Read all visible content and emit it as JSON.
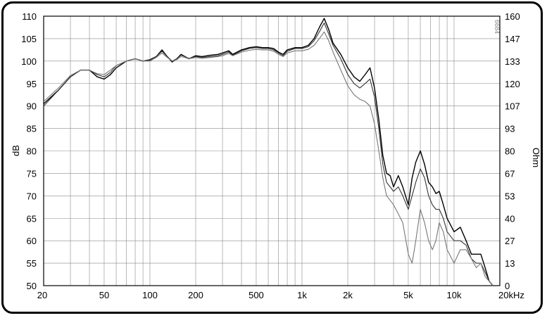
{
  "chart_data": {
    "type": "line",
    "title": "",
    "xlabel": "",
    "x_unit": "kHz",
    "ylabel": "dB",
    "y2label": "Ohm",
    "watermark": "6684",
    "x_scale": "log",
    "xlim": [
      20,
      20000
    ],
    "ylim": [
      50,
      110
    ],
    "y2lim": [
      0,
      160
    ],
    "grid": true,
    "x_tick_labels": [
      "20",
      "50",
      "100",
      "200",
      "500",
      "1k",
      "2k",
      "5k",
      "10k",
      "20kHz"
    ],
    "x_tick_values": [
      20,
      50,
      100,
      200,
      500,
      1000,
      2000,
      5000,
      10000,
      20000
    ],
    "y_tick_labels": [
      "110",
      "105",
      "100",
      "95",
      "90",
      "85",
      "80",
      "75",
      "70",
      "65",
      "60",
      "55",
      "50"
    ],
    "y_tick_values": [
      110,
      105,
      100,
      95,
      90,
      85,
      80,
      75,
      70,
      65,
      60,
      55,
      50
    ],
    "y2_tick_labels": [
      "160",
      "147",
      "133",
      "120",
      "107",
      "93",
      "80",
      "67",
      "53",
      "40",
      "27",
      "13",
      "0"
    ],
    "colors": {
      "series_1": "#000000",
      "series_2": "#333333",
      "series_3": "#777777"
    },
    "series": [
      {
        "points": [
          [
            20,
            90.5
          ],
          [
            25,
            93.5
          ],
          [
            30,
            96.5
          ],
          [
            35,
            98
          ],
          [
            40,
            98
          ],
          [
            45,
            96.5
          ],
          [
            50,
            96
          ],
          [
            55,
            97
          ],
          [
            60,
            98.5
          ],
          [
            70,
            100
          ],
          [
            80,
            100.5
          ],
          [
            90,
            100
          ],
          [
            100,
            100.3
          ],
          [
            110,
            101
          ],
          [
            120,
            102.5
          ],
          [
            130,
            101
          ],
          [
            140,
            99.8
          ],
          [
            150,
            100.5
          ],
          [
            160,
            101.5
          ],
          [
            170,
            101
          ],
          [
            180,
            100.5
          ],
          [
            200,
            101.2
          ],
          [
            220,
            101
          ],
          [
            250,
            101.3
          ],
          [
            280,
            101.5
          ],
          [
            300,
            101.8
          ],
          [
            330,
            102.3
          ],
          [
            350,
            101.5
          ],
          [
            400,
            102.5
          ],
          [
            450,
            103
          ],
          [
            500,
            103.2
          ],
          [
            550,
            103
          ],
          [
            600,
            103
          ],
          [
            650,
            102.8
          ],
          [
            700,
            102
          ],
          [
            750,
            101.5
          ],
          [
            800,
            102.5
          ],
          [
            900,
            103
          ],
          [
            1000,
            103
          ],
          [
            1100,
            103.5
          ],
          [
            1200,
            105
          ],
          [
            1300,
            107.5
          ],
          [
            1400,
            109.5
          ],
          [
            1500,
            107
          ],
          [
            1600,
            104
          ],
          [
            1800,
            101.5
          ],
          [
            2000,
            98.5
          ],
          [
            2200,
            96.5
          ],
          [
            2400,
            95.5
          ],
          [
            2600,
            97
          ],
          [
            2800,
            98.5
          ],
          [
            3000,
            94
          ],
          [
            3200,
            87
          ],
          [
            3400,
            79
          ],
          [
            3600,
            75
          ],
          [
            3800,
            74.5
          ],
          [
            4000,
            72
          ],
          [
            4300,
            74.5
          ],
          [
            4600,
            72
          ],
          [
            5000,
            68
          ],
          [
            5300,
            74
          ],
          [
            5600,
            77.5
          ],
          [
            6000,
            80
          ],
          [
            6400,
            77
          ],
          [
            6800,
            73
          ],
          [
            7200,
            72
          ],
          [
            7600,
            70.5
          ],
          [
            8000,
            71
          ],
          [
            8500,
            68
          ],
          [
            9000,
            65
          ],
          [
            10000,
            62
          ],
          [
            11000,
            63
          ],
          [
            12000,
            60
          ],
          [
            13000,
            57
          ],
          [
            14000,
            57
          ],
          [
            15000,
            57
          ],
          [
            16000,
            54
          ],
          [
            17000,
            51
          ],
          [
            18000,
            50
          ]
        ]
      },
      {
        "points": [
          [
            20,
            90
          ],
          [
            25,
            93.5
          ],
          [
            30,
            96.5
          ],
          [
            35,
            98
          ],
          [
            40,
            98
          ],
          [
            45,
            97
          ],
          [
            50,
            96.5
          ],
          [
            55,
            97.5
          ],
          [
            60,
            99
          ],
          [
            70,
            100
          ],
          [
            80,
            100.5
          ],
          [
            90,
            100
          ],
          [
            100,
            100.2
          ],
          [
            110,
            101
          ],
          [
            120,
            102.2
          ],
          [
            130,
            101
          ],
          [
            140,
            100
          ],
          [
            150,
            100.5
          ],
          [
            160,
            101.3
          ],
          [
            170,
            101
          ],
          [
            180,
            100.6
          ],
          [
            200,
            101
          ],
          [
            220,
            100.8
          ],
          [
            250,
            101
          ],
          [
            280,
            101.2
          ],
          [
            300,
            101.5
          ],
          [
            330,
            102
          ],
          [
            350,
            101.3
          ],
          [
            400,
            102.3
          ],
          [
            450,
            102.8
          ],
          [
            500,
            103
          ],
          [
            550,
            102.8
          ],
          [
            600,
            102.8
          ],
          [
            650,
            102.5
          ],
          [
            700,
            101.8
          ],
          [
            750,
            101.2
          ],
          [
            800,
            102.2
          ],
          [
            900,
            102.8
          ],
          [
            1000,
            102.8
          ],
          [
            1100,
            103.2
          ],
          [
            1200,
            104.5
          ],
          [
            1300,
            106.5
          ],
          [
            1400,
            108.5
          ],
          [
            1500,
            106
          ],
          [
            1600,
            103.5
          ],
          [
            1800,
            100.5
          ],
          [
            2000,
            97
          ],
          [
            2200,
            95
          ],
          [
            2400,
            94
          ],
          [
            2600,
            95
          ],
          [
            2800,
            96
          ],
          [
            3000,
            92
          ],
          [
            3200,
            85
          ],
          [
            3400,
            77
          ],
          [
            3600,
            73
          ],
          [
            3800,
            72
          ],
          [
            4000,
            71
          ],
          [
            4300,
            72
          ],
          [
            4600,
            70
          ],
          [
            5000,
            67
          ],
          [
            5300,
            70
          ],
          [
            5600,
            73
          ],
          [
            6000,
            76
          ],
          [
            6400,
            74
          ],
          [
            6800,
            70
          ],
          [
            7200,
            68
          ],
          [
            7600,
            67
          ],
          [
            8000,
            67
          ],
          [
            8500,
            65
          ],
          [
            9000,
            62
          ],
          [
            10000,
            60
          ],
          [
            11000,
            60
          ],
          [
            12000,
            59
          ],
          [
            13000,
            56
          ],
          [
            14000,
            55
          ],
          [
            15000,
            55
          ],
          [
            16000,
            53
          ],
          [
            17000,
            51
          ],
          [
            18000,
            50
          ]
        ]
      },
      {
        "points": [
          [
            20,
            91
          ],
          [
            25,
            94
          ],
          [
            30,
            96.8
          ],
          [
            35,
            98
          ],
          [
            40,
            98
          ],
          [
            45,
            97.2
          ],
          [
            50,
            97
          ],
          [
            55,
            98
          ],
          [
            60,
            99
          ],
          [
            70,
            100
          ],
          [
            80,
            100.5
          ],
          [
            90,
            100
          ],
          [
            100,
            100
          ],
          [
            110,
            100.8
          ],
          [
            120,
            101.8
          ],
          [
            130,
            100.8
          ],
          [
            140,
            100
          ],
          [
            150,
            100.3
          ],
          [
            160,
            101
          ],
          [
            170,
            100.8
          ],
          [
            180,
            100.5
          ],
          [
            200,
            100.8
          ],
          [
            220,
            100.6
          ],
          [
            250,
            100.8
          ],
          [
            280,
            101
          ],
          [
            300,
            101.2
          ],
          [
            330,
            101.7
          ],
          [
            350,
            101.2
          ],
          [
            400,
            102
          ],
          [
            450,
            102.4
          ],
          [
            500,
            102.6
          ],
          [
            550,
            102.5
          ],
          [
            600,
            102.5
          ],
          [
            650,
            102.2
          ],
          [
            700,
            101.5
          ],
          [
            750,
            101
          ],
          [
            800,
            101.8
          ],
          [
            900,
            102.3
          ],
          [
            1000,
            102.3
          ],
          [
            1100,
            102.6
          ],
          [
            1200,
            103.5
          ],
          [
            1300,
            105
          ],
          [
            1400,
            106.5
          ],
          [
            1500,
            104.5
          ],
          [
            1600,
            102
          ],
          [
            1800,
            98
          ],
          [
            2000,
            94.5
          ],
          [
            2200,
            92.5
          ],
          [
            2400,
            91.5
          ],
          [
            2600,
            91
          ],
          [
            2800,
            90
          ],
          [
            3000,
            86
          ],
          [
            3200,
            80
          ],
          [
            3400,
            74
          ],
          [
            3600,
            70
          ],
          [
            3800,
            69
          ],
          [
            4000,
            68
          ],
          [
            4300,
            66
          ],
          [
            4600,
            64
          ],
          [
            5000,
            57
          ],
          [
            5300,
            55
          ],
          [
            5600,
            60
          ],
          [
            6000,
            67
          ],
          [
            6400,
            64
          ],
          [
            6800,
            60
          ],
          [
            7200,
            58
          ],
          [
            7600,
            60
          ],
          [
            8000,
            64
          ],
          [
            8500,
            62
          ],
          [
            9000,
            58
          ],
          [
            10000,
            55
          ],
          [
            11000,
            58
          ],
          [
            12000,
            58
          ],
          [
            13000,
            56
          ],
          [
            14000,
            54
          ],
          [
            15000,
            55
          ],
          [
            16000,
            52
          ],
          [
            17000,
            51
          ],
          [
            18000,
            50
          ]
        ]
      }
    ]
  }
}
